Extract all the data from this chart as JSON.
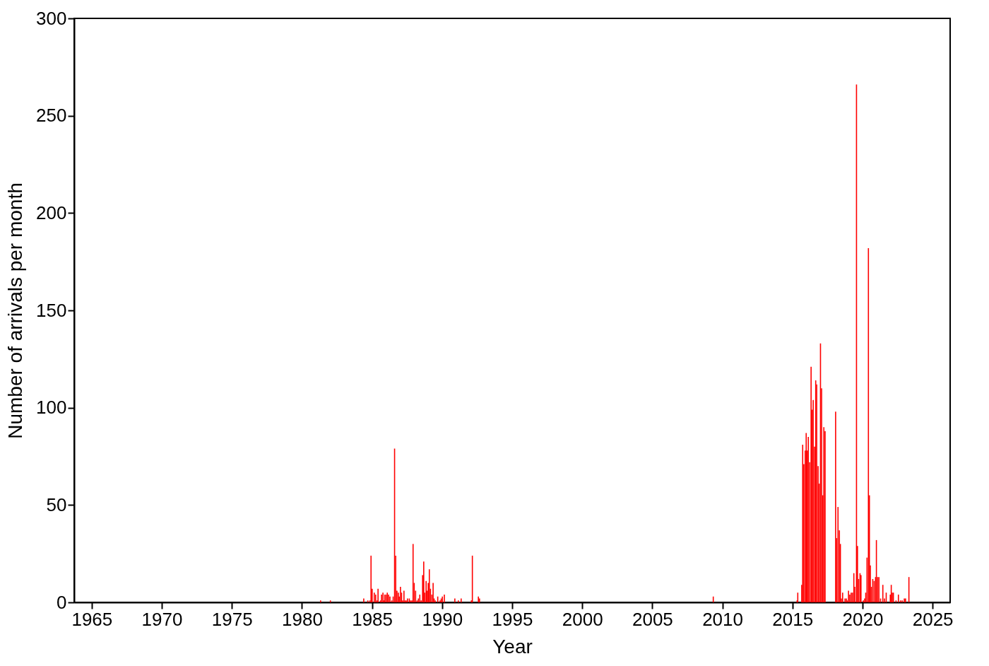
{
  "chart_data": {
    "type": "bar",
    "xlabel": "Year",
    "ylabel": "Number of arrivals per month",
    "color": "#ff0000",
    "grid": false,
    "xlim": [
      1964,
      2026
    ],
    "xticks": [
      1965,
      1970,
      1975,
      1980,
      1985,
      1990,
      1995,
      2000,
      2005,
      2010,
      2015,
      2020,
      2025
    ],
    "ylim": [
      0,
      300
    ],
    "yticks": [
      0,
      50,
      100,
      150,
      200,
      250,
      300
    ],
    "x": [
      1981.33,
      1982.03,
      1984.41,
      1984.7,
      1984.85,
      1984.93,
      1985.01,
      1985.16,
      1985.26,
      1985.36,
      1985.43,
      1985.6,
      1985.68,
      1985.78,
      1985.84,
      1985.91,
      1986.0,
      1986.09,
      1986.18,
      1986.28,
      1986.41,
      1986.51,
      1986.61,
      1986.69,
      1986.78,
      1986.88,
      1986.94,
      1987.03,
      1987.11,
      1987.18,
      1987.28,
      1987.36,
      1987.44,
      1987.53,
      1987.66,
      1987.74,
      1987.84,
      1987.93,
      1988.01,
      1988.11,
      1988.22,
      1988.31,
      1988.41,
      1988.51,
      1988.61,
      1988.69,
      1988.76,
      1988.86,
      1988.94,
      1989.01,
      1989.09,
      1989.17,
      1989.27,
      1989.36,
      1989.43,
      1989.51,
      1989.69,
      1989.86,
      1989.94,
      1990.02,
      1990.16,
      1990.91,
      1991.16,
      1991.36,
      1992.09,
      1992.16,
      1992.59,
      1992.67,
      2009.35,
      2015.33,
      2015.38,
      2015.66,
      2015.73,
      2015.81,
      2015.91,
      2015.98,
      2016.06,
      2016.13,
      2016.23,
      2016.33,
      2016.41,
      2016.48,
      2016.58,
      2016.66,
      2016.73,
      2016.83,
      2016.91,
      2017.0,
      2017.08,
      2017.16,
      2017.24,
      2017.33,
      2018.08,
      2018.15,
      2018.25,
      2018.35,
      2018.42,
      2018.49,
      2018.58,
      2018.75,
      2018.85,
      2018.9,
      2019.0,
      2019.09,
      2019.19,
      2019.28,
      2019.38,
      2019.45,
      2019.57,
      2019.64,
      2019.72,
      2019.82,
      2019.89,
      2020.06,
      2020.15,
      2020.23,
      2020.32,
      2020.42,
      2020.49,
      2020.56,
      2020.63,
      2020.73,
      2020.83,
      2020.93,
      2020.99,
      2021.08,
      2021.17,
      2021.29,
      2021.45,
      2021.57,
      2021.69,
      2021.98,
      2022.05,
      2022.12,
      2022.2,
      2022.39,
      2022.56,
      2022.71,
      2022.83,
      2022.98,
      2023.07,
      2023.31
    ],
    "values": [
      1,
      1,
      2,
      1,
      1,
      24,
      7,
      5,
      4,
      1,
      7,
      1,
      4,
      5,
      1,
      4,
      4,
      5,
      4,
      3,
      1,
      3,
      79,
      24,
      6,
      5,
      3,
      8,
      5,
      1,
      6,
      1,
      1,
      2,
      2,
      1,
      1,
      30,
      10,
      6,
      1,
      2,
      4,
      1,
      14,
      21,
      5,
      11,
      6,
      10,
      17,
      7,
      4,
      10,
      2,
      1,
      3,
      1,
      2,
      3,
      4,
      2,
      1,
      2,
      1,
      24,
      3,
      2,
      3,
      1,
      5,
      9,
      81,
      71,
      78,
      87,
      78,
      85,
      72,
      121,
      99,
      104,
      80,
      114,
      112,
      70,
      61,
      133,
      110,
      55,
      90,
      88,
      98,
      33,
      49,
      37,
      30,
      2,
      5,
      2,
      2,
      1,
      6,
      4,
      5,
      5,
      15,
      8,
      266,
      29,
      12,
      15,
      14,
      1,
      2,
      5,
      23,
      182,
      55,
      19,
      8,
      12,
      11,
      13,
      32,
      13,
      13,
      2,
      9,
      2,
      5,
      4,
      9,
      5,
      5,
      1,
      4,
      1,
      1,
      2,
      2,
      13
    ]
  }
}
